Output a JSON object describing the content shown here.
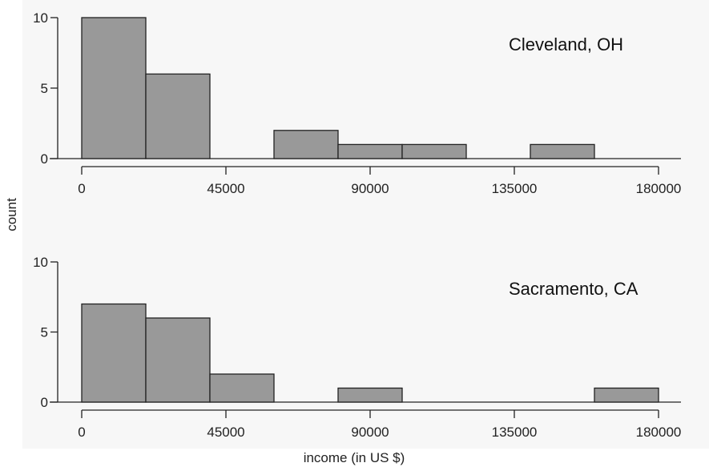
{
  "y_axis_label": "count",
  "x_axis_label": "income (in US $)",
  "chart_data": [
    {
      "type": "bar",
      "title": "Cleveland, OH",
      "xlabel": "income (in US $)",
      "ylabel": "count",
      "bin_edges": [
        0,
        20000,
        40000,
        60000,
        80000,
        100000,
        120000,
        140000,
        160000,
        180000
      ],
      "counts": [
        10,
        6,
        0,
        2,
        1,
        1,
        0,
        1,
        0
      ],
      "xlim": [
        0,
        180000
      ],
      "ylim": [
        0,
        10
      ],
      "x_ticks": [
        0,
        45000,
        90000,
        135000,
        180000
      ],
      "y_ticks": [
        0,
        5,
        10
      ],
      "grid": false
    },
    {
      "type": "bar",
      "title": "Sacramento, CA",
      "xlabel": "income (in US $)",
      "ylabel": "count",
      "bin_edges": [
        0,
        20000,
        40000,
        60000,
        80000,
        100000,
        120000,
        140000,
        160000,
        180000
      ],
      "counts": [
        7,
        6,
        2,
        0,
        1,
        0,
        0,
        0,
        1
      ],
      "xlim": [
        0,
        180000
      ],
      "ylim": [
        0,
        10
      ],
      "x_ticks": [
        0,
        45000,
        90000,
        135000,
        180000
      ],
      "y_ticks": [
        0,
        5,
        10
      ],
      "grid": false
    }
  ]
}
